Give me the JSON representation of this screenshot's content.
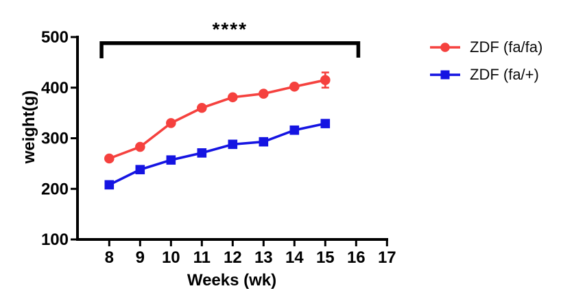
{
  "chart_data": {
    "type": "line",
    "title": "",
    "xlabel": "Weeks (wk)",
    "ylabel": "weight(g)",
    "x": [
      8,
      9,
      10,
      11,
      12,
      13,
      14,
      15
    ],
    "x_ticks": [
      8,
      9,
      10,
      11,
      12,
      13,
      14,
      15,
      16,
      17
    ],
    "y_ticks": [
      100,
      200,
      300,
      400,
      500
    ],
    "xlim": [
      7,
      17.1
    ],
    "ylim": [
      100,
      500
    ],
    "grid": false,
    "legend_position": "right",
    "series": [
      {
        "name": "ZDF (fa/fa)",
        "color": "#f5413e",
        "marker": "circle",
        "values": [
          260,
          283,
          330,
          360,
          381,
          388,
          402,
          415
        ],
        "error": [
          0,
          0,
          0,
          0,
          0,
          0,
          0,
          15
        ]
      },
      {
        "name": "ZDF (fa/+)",
        "color": "#1514e2",
        "marker": "square",
        "values": [
          208,
          238,
          257,
          271,
          288,
          293,
          316,
          329
        ],
        "error": [
          0,
          0,
          0,
          0,
          0,
          0,
          0,
          0
        ]
      }
    ],
    "significance": {
      "text": "****",
      "x_from": 7.75,
      "x_to": 16.07,
      "y_bar": 488,
      "y_tick_drop_to": 458
    }
  },
  "colors": {
    "axis": "#000000",
    "text": "#000000",
    "background": "#ffffff"
  }
}
